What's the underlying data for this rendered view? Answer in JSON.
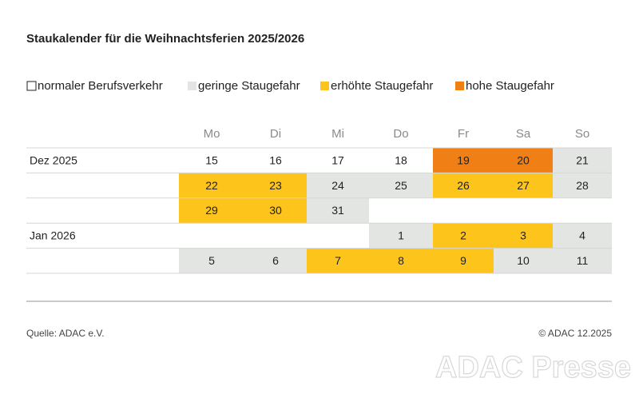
{
  "title": "Staukalender für die Weihnachtsferien 2025/2026",
  "legend": [
    {
      "label": "normaler Berufsverkehr",
      "color": "#ffffff"
    },
    {
      "label": "geringe Staugefahr",
      "color": "#e2e5e2"
    },
    {
      "label": "erhöhte Staugefahr",
      "color": "#fdc41c"
    },
    {
      "label": "hohe Staugefahr",
      "color": "#f07f16"
    }
  ],
  "weekdays": [
    "Mo",
    "Di",
    "Mi",
    "Do",
    "Fr",
    "Sa",
    "So"
  ],
  "rows": [
    {
      "label": "Dez 2025",
      "cells": [
        {
          "day": 15,
          "level": 0
        },
        {
          "day": 16,
          "level": 0
        },
        {
          "day": 17,
          "level": 0
        },
        {
          "day": 18,
          "level": 0
        },
        {
          "day": 19,
          "level": 3
        },
        {
          "day": 20,
          "level": 3
        },
        {
          "day": 21,
          "level": 1
        }
      ]
    },
    {
      "label": null,
      "cells": [
        {
          "day": 22,
          "level": 2
        },
        {
          "day": 23,
          "level": 2
        },
        {
          "day": 24,
          "level": 1
        },
        {
          "day": 25,
          "level": 1
        },
        {
          "day": 26,
          "level": 2
        },
        {
          "day": 27,
          "level": 2
        },
        {
          "day": 28,
          "level": 1
        }
      ]
    },
    {
      "label": null,
      "cells": [
        {
          "day": 29,
          "level": 2
        },
        {
          "day": 30,
          "level": 2
        },
        {
          "day": 31,
          "level": 1
        },
        null,
        null,
        null,
        null
      ]
    },
    {
      "label": "Jan 2026",
      "cells": [
        null,
        null,
        null,
        {
          "day": 1,
          "level": 1
        },
        {
          "day": 2,
          "level": 2
        },
        {
          "day": 3,
          "level": 2
        },
        {
          "day": 4,
          "level": 1
        }
      ]
    },
    {
      "label": null,
      "cells": [
        {
          "day": 5,
          "level": 1
        },
        {
          "day": 6,
          "level": 1
        },
        {
          "day": 7,
          "level": 2
        },
        {
          "day": 8,
          "level": 2
        },
        {
          "day": 9,
          "level": 2
        },
        {
          "day": 10,
          "level": 1
        },
        {
          "day": 11,
          "level": 1
        }
      ]
    }
  ],
  "source": "Quelle: ADAC e.V.",
  "copyright": "© ADAC 12.2025",
  "watermark": "ADAC Presse"
}
